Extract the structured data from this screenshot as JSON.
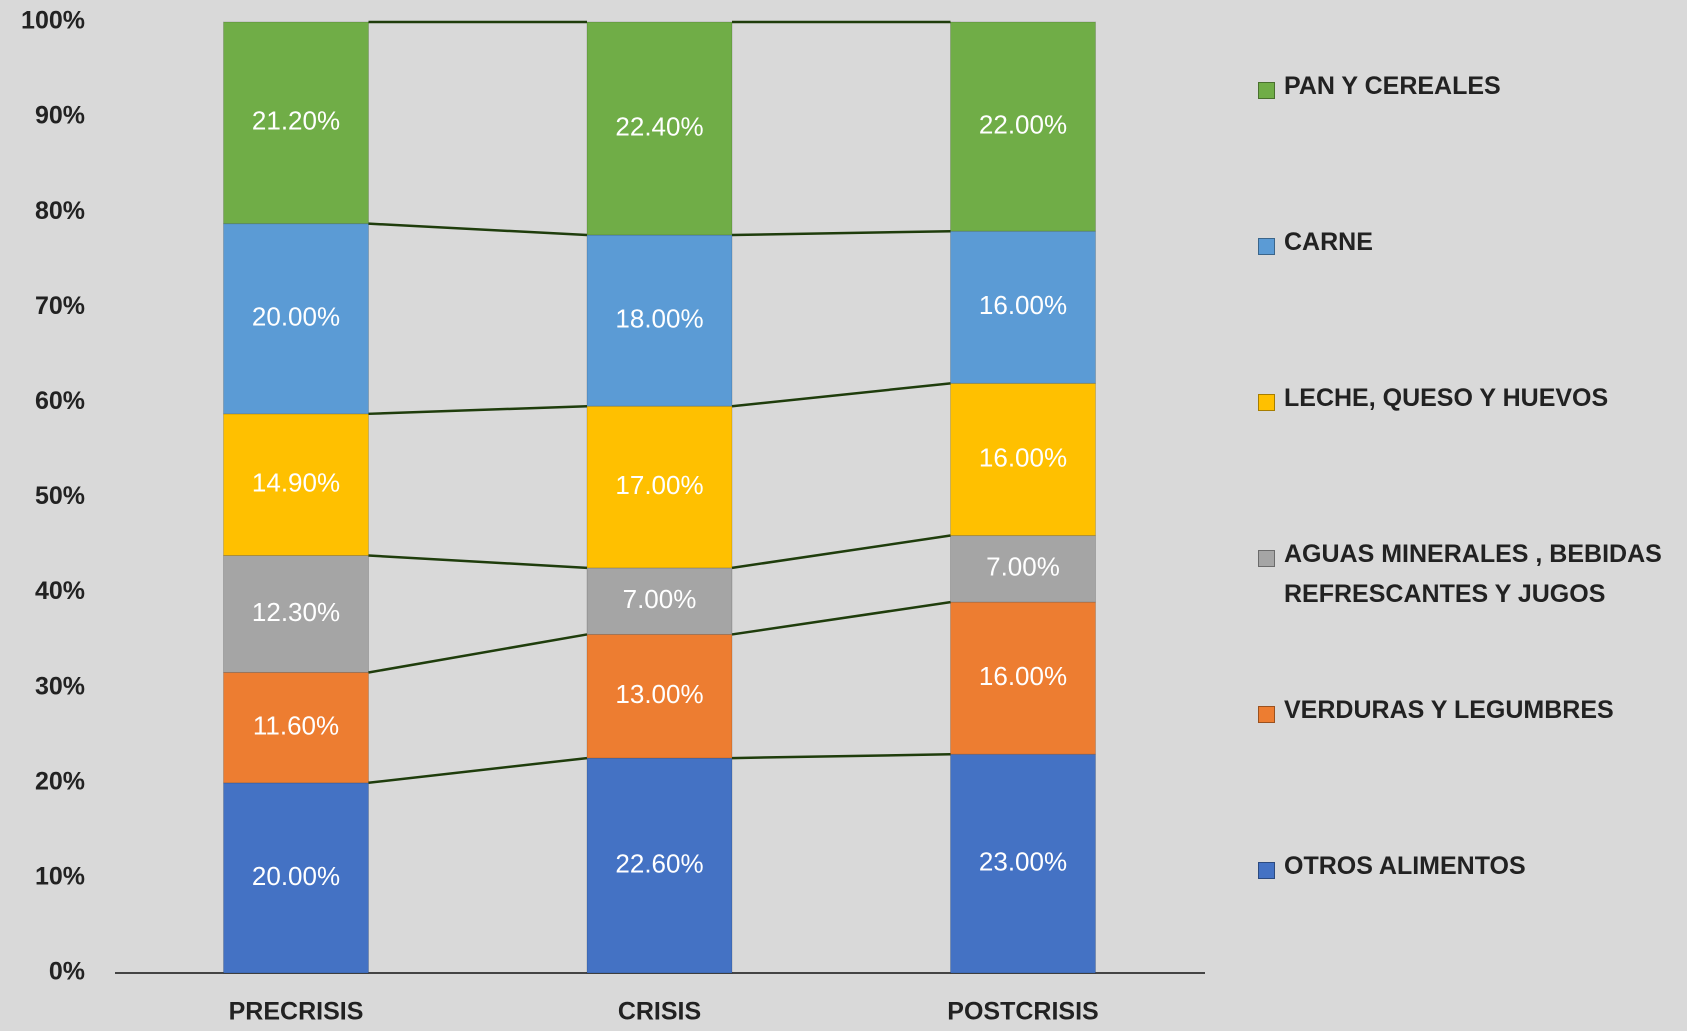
{
  "chart_data": {
    "type": "stacked_bar_100",
    "categories": [
      "PRECRISIS",
      "CRISIS",
      "POSTCRISIS"
    ],
    "series": [
      {
        "name": "OTROS ALIMENTOS",
        "color": "#4472c4",
        "values": [
          20,
          22.6,
          23
        ],
        "value_labels": [
          "20.00%",
          "22.60%",
          "23.00%"
        ]
      },
      {
        "name": "VERDURAS Y LEGUMBRES",
        "color": "#ed7d31",
        "values": [
          11.6,
          13,
          16
        ],
        "value_labels": [
          "11.60%",
          "13.00%",
          "16.00%"
        ]
      },
      {
        "name": "AGUAS MINERALES , BEBIDAS REFRESCANTES Y JUGOS",
        "color": "#a5a5a5",
        "values": [
          12.3,
          7,
          7
        ],
        "value_labels": [
          "12.30%",
          "7.00%",
          "7.00%"
        ]
      },
      {
        "name": "LECHE, QUESO Y HUEVOS",
        "color": "#ffc000",
        "values": [
          14.9,
          17,
          16
        ],
        "value_labels": [
          "14.90%",
          "17.00%",
          "16.00%"
        ]
      },
      {
        "name": "CARNE",
        "color": "#5b9bd5",
        "values": [
          20,
          18,
          16
        ],
        "value_labels": [
          "20.00%",
          "18.00%",
          "16.00%"
        ]
      },
      {
        "name": "PAN Y CEREALES",
        "color": "#70ad47",
        "values": [
          21.2,
          22.4,
          22
        ],
        "value_labels": [
          "21.20%",
          "22.40%",
          "22.00%"
        ]
      }
    ],
    "ylim": [
      0,
      100
    ],
    "yticks": [
      {
        "value": 0,
        "label": "0%"
      },
      {
        "value": 10,
        "label": "10%"
      },
      {
        "value": 20,
        "label": "20%"
      },
      {
        "value": 30,
        "label": "30%"
      },
      {
        "value": 40,
        "label": "40%"
      },
      {
        "value": 50,
        "label": "50%"
      },
      {
        "value": 60,
        "label": "60%"
      },
      {
        "value": 70,
        "label": "70%"
      },
      {
        "value": 80,
        "label": "80%"
      },
      {
        "value": 90,
        "label": "90%"
      },
      {
        "value": 100,
        "label": "100%"
      }
    ],
    "series_lines": true,
    "legend": "right"
  }
}
